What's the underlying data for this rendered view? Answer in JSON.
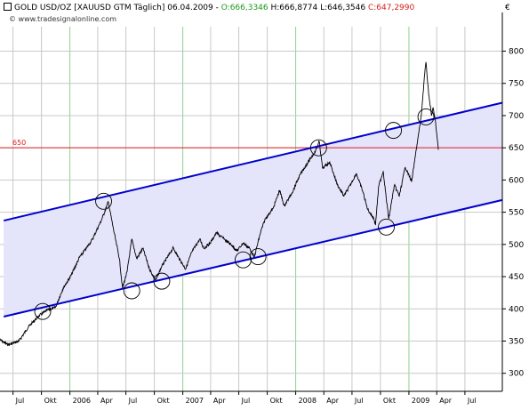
{
  "header": {
    "instrument": "GOLD USD/OZ [XAUUSD GTM  Täglich] 06.04.2009 - ",
    "open": "O:666,3346",
    "high_low": " H:666,8774 L:646,3546 ",
    "close": "C:647,2990"
  },
  "source": "© www.tradesignalonline.com",
  "currency_symbol": "€",
  "colors": {
    "price_line": "#000000",
    "channel_line": "#0000cc",
    "channel_fill": "#e4e4fa",
    "level_line": "#e02020",
    "level_label": "#e02020",
    "grid_year": "#90d090",
    "grid_minor": "#c8c8c8",
    "header_open": "#1a9a1a",
    "header_close": "#d42020"
  },
  "chart_data": {
    "type": "line",
    "title": "GOLD USD/OZ [XAUUSD GTM  Täglich] 06.04.2009",
    "ylim": [
      272,
      838
    ],
    "y_ticks": [
      300,
      350,
      400,
      450,
      500,
      550,
      600,
      650,
      700,
      750,
      800
    ],
    "xlim": [
      "2005-05-20",
      "2009-10-30"
    ],
    "x_ticks": [
      {
        "date": "2005-07-01",
        "label": "Jul"
      },
      {
        "date": "2005-10-01",
        "label": "Okt"
      },
      {
        "date": "2006-01-01",
        "label": "2006",
        "year": true
      },
      {
        "date": "2006-04-01",
        "label": "Apr"
      },
      {
        "date": "2006-07-01",
        "label": "Jul"
      },
      {
        "date": "2006-10-01",
        "label": "Okt"
      },
      {
        "date": "2007-01-01",
        "label": "2007",
        "year": true
      },
      {
        "date": "2007-04-01",
        "label": "Apr"
      },
      {
        "date": "2007-07-01",
        "label": "Jul"
      },
      {
        "date": "2007-10-01",
        "label": "Okt"
      },
      {
        "date": "2008-01-01",
        "label": "2008",
        "year": true
      },
      {
        "date": "2008-04-01",
        "label": "Apr"
      },
      {
        "date": "2008-07-01",
        "label": "Jul"
      },
      {
        "date": "2008-10-01",
        "label": "Okt"
      },
      {
        "date": "2009-01-01",
        "label": "2009",
        "year": true
      },
      {
        "date": "2009-04-01",
        "label": "Apr"
      },
      {
        "date": "2009-07-01",
        "label": "Jul"
      }
    ],
    "series": [
      {
        "points": [
          [
            "2005-05-20",
            352
          ],
          [
            "2005-06-15",
            344
          ],
          [
            "2005-07-20",
            350
          ],
          [
            "2005-08-20",
            372
          ],
          [
            "2005-09-20",
            388
          ],
          [
            "2005-10-20",
            398
          ],
          [
            "2005-11-15",
            402
          ],
          [
            "2005-12-10",
            432
          ],
          [
            "2006-01-05",
            452
          ],
          [
            "2006-02-01",
            480
          ],
          [
            "2006-02-20",
            492
          ],
          [
            "2006-03-15",
            508
          ],
          [
            "2006-04-15",
            540
          ],
          [
            "2006-05-05",
            566
          ],
          [
            "2006-05-20",
            528
          ],
          [
            "2006-06-10",
            478
          ],
          [
            "2006-06-20",
            432
          ],
          [
            "2006-07-05",
            458
          ],
          [
            "2006-07-20",
            508
          ],
          [
            "2006-08-05",
            478
          ],
          [
            "2006-08-25",
            494
          ],
          [
            "2006-09-15",
            462
          ],
          [
            "2006-10-05",
            444
          ],
          [
            "2006-10-25",
            466
          ],
          [
            "2006-11-15",
            482
          ],
          [
            "2006-12-01",
            495
          ],
          [
            "2006-12-20",
            478
          ],
          [
            "2007-01-10",
            462
          ],
          [
            "2007-01-30",
            488
          ],
          [
            "2007-02-25",
            508
          ],
          [
            "2007-03-10",
            494
          ],
          [
            "2007-03-30",
            502
          ],
          [
            "2007-04-20",
            518
          ],
          [
            "2007-05-15",
            508
          ],
          [
            "2007-06-10",
            498
          ],
          [
            "2007-06-25",
            490
          ],
          [
            "2007-07-15",
            502
          ],
          [
            "2007-08-05",
            494
          ],
          [
            "2007-08-20",
            480
          ],
          [
            "2007-09-10",
            520
          ],
          [
            "2007-09-25",
            540
          ],
          [
            "2007-10-20",
            556
          ],
          [
            "2007-11-10",
            584
          ],
          [
            "2007-11-25",
            560
          ],
          [
            "2007-12-20",
            580
          ],
          [
            "2008-01-15",
            608
          ],
          [
            "2008-02-10",
            628
          ],
          [
            "2008-03-05",
            645
          ],
          [
            "2008-03-17",
            660
          ],
          [
            "2008-03-28",
            618
          ],
          [
            "2008-04-20",
            628
          ],
          [
            "2008-05-15",
            592
          ],
          [
            "2008-06-05",
            575
          ],
          [
            "2008-06-25",
            592
          ],
          [
            "2008-07-15",
            610
          ],
          [
            "2008-08-05",
            582
          ],
          [
            "2008-08-20",
            555
          ],
          [
            "2008-09-10",
            540
          ],
          [
            "2008-09-15",
            530
          ],
          [
            "2008-09-25",
            590
          ],
          [
            "2008-10-10",
            614
          ],
          [
            "2008-10-20",
            570
          ],
          [
            "2008-10-28",
            540
          ],
          [
            "2008-11-15",
            592
          ],
          [
            "2008-12-01",
            575
          ],
          [
            "2008-12-20",
            620
          ],
          [
            "2009-01-10",
            598
          ],
          [
            "2009-01-25",
            648
          ],
          [
            "2009-02-10",
            700
          ],
          [
            "2009-02-20",
            760
          ],
          [
            "2009-02-25",
            783
          ],
          [
            "2009-03-05",
            738
          ],
          [
            "2009-03-15",
            700
          ],
          [
            "2009-03-20",
            712
          ],
          [
            "2009-03-28",
            690
          ],
          [
            "2009-04-06",
            647
          ]
        ]
      }
    ],
    "channel": {
      "upper": [
        [
          "2005-06-01",
          537
        ],
        [
          "2009-10-30",
          720
        ]
      ],
      "lower": [
        [
          "2005-06-01",
          388
        ],
        [
          "2009-10-30",
          569
        ]
      ]
    },
    "horizontal_line": {
      "value": 650,
      "label": "650"
    },
    "touch_points": [
      [
        "2005-10-05",
        396
      ],
      [
        "2006-04-20",
        567
      ],
      [
        "2006-07-20",
        428
      ],
      [
        "2006-10-25",
        443
      ],
      [
        "2007-07-15",
        476
      ],
      [
        "2007-09-01",
        481
      ],
      [
        "2008-03-15",
        650
      ],
      [
        "2008-10-20",
        527
      ],
      [
        "2008-11-12",
        677
      ],
      [
        "2009-02-25",
        698
      ]
    ]
  }
}
